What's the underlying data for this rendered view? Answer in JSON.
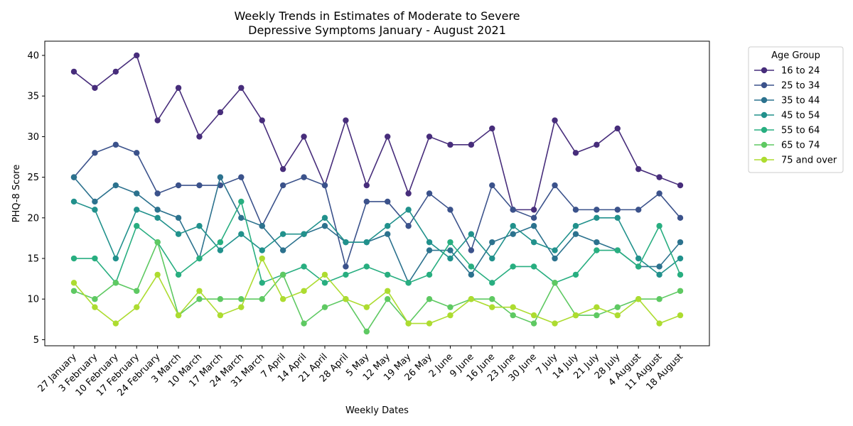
{
  "chart_data": {
    "type": "line",
    "title_lines": [
      "Weekly Trends in Estimates of Moderate to Severe",
      "Depressive Symptoms January - August 2021"
    ],
    "xlabel": "Weekly Dates",
    "ylabel": "PHQ-8 Score",
    "ylim": [
      4.25,
      41.75
    ],
    "yticks": [
      5,
      10,
      15,
      20,
      25,
      30,
      35,
      40
    ],
    "grid": false,
    "legend": {
      "title": "Age Group",
      "placement": "outside-top-right"
    },
    "categories": [
      "27 January",
      "3 February",
      "10 February",
      "17 February",
      "24 February",
      "3 March",
      "10 March",
      "17 March",
      "24 March",
      "31 March",
      "7 April",
      "14 April",
      "21 April",
      "28 April",
      "5 May",
      "12 May",
      "19 May",
      "26 May",
      "2 June",
      "9 June",
      "16 June",
      "23 June",
      "30 June",
      "7 July",
      "14 July",
      "21 July",
      "28 July",
      "4 August",
      "11 August",
      "18 August"
    ],
    "series": [
      {
        "name": "16 to 24",
        "color": "#472d7b",
        "values": [
          38,
          36,
          38,
          40,
          32,
          36,
          30,
          33,
          36,
          32,
          26,
          30,
          24,
          32,
          24,
          30,
          23,
          30,
          29,
          29,
          31,
          21,
          21,
          32,
          28,
          29,
          31,
          26,
          25,
          24
        ]
      },
      {
        "name": "25 to 34",
        "color": "#3b528b",
        "values": [
          25,
          28,
          29,
          28,
          23,
          24,
          24,
          24,
          25,
          19,
          24,
          25,
          24,
          14,
          22,
          22,
          19,
          23,
          21,
          16,
          24,
          21,
          20,
          24,
          21,
          21,
          21,
          21,
          23,
          20
        ]
      },
      {
        "name": "35 to 44",
        "color": "#2c728e",
        "values": [
          25,
          22,
          24,
          23,
          21,
          20,
          15,
          25,
          20,
          19,
          16,
          18,
          19,
          17,
          17,
          18,
          12,
          16,
          16,
          13,
          17,
          18,
          19,
          15,
          18,
          17,
          16,
          14,
          14,
          17
        ]
      },
      {
        "name": "45 to 54",
        "color": "#21918c",
        "values": [
          22,
          21,
          15,
          21,
          20,
          18,
          19,
          16,
          18,
          16,
          18,
          18,
          20,
          17,
          17,
          19,
          21,
          17,
          15,
          18,
          15,
          19,
          17,
          16,
          19,
          20,
          20,
          15,
          13,
          15
        ]
      },
      {
        "name": "55 to 64",
        "color": "#28ae80",
        "values": [
          15,
          15,
          12,
          19,
          17,
          13,
          15,
          17,
          22,
          12,
          13,
          14,
          12,
          13,
          14,
          13,
          12,
          13,
          17,
          14,
          12,
          14,
          14,
          12,
          13,
          16,
          16,
          14,
          19,
          13
        ]
      },
      {
        "name": "65 to 74",
        "color": "#5ec962",
        "values": [
          11,
          10,
          12,
          11,
          17,
          8,
          10,
          10,
          10,
          10,
          13,
          7,
          9,
          10,
          6,
          10,
          7,
          10,
          9,
          10,
          10,
          8,
          7,
          12,
          8,
          8,
          9,
          10,
          10,
          11
        ]
      },
      {
        "name": "75 and over",
        "color": "#addc30",
        "values": [
          12,
          9,
          7,
          9,
          13,
          8,
          11,
          8,
          9,
          15,
          10,
          11,
          13,
          10,
          9,
          11,
          7,
          7,
          8,
          10,
          9,
          9,
          8,
          7,
          8,
          9,
          8,
          10,
          7,
          8
        ]
      }
    ]
  }
}
